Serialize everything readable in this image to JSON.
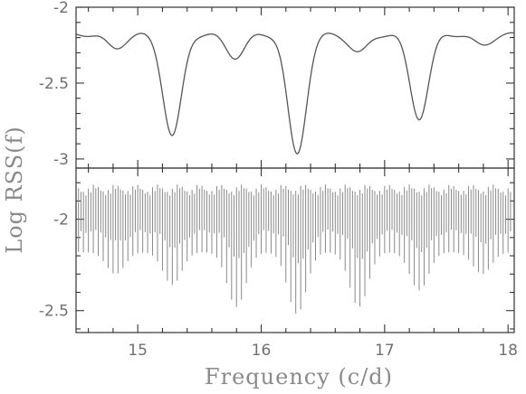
{
  "chart_data": {
    "type": "line",
    "xlabel": "Frequency (c/d)",
    "ylabel": "Log RSS(f)",
    "xlim": [
      14.5,
      18.05
    ],
    "x_ticks": [
      "15",
      "16",
      "17",
      "18"
    ],
    "panels": [
      {
        "name": "top",
        "style": "line",
        "ylim": [
          -3.06,
          -2.0
        ],
        "y_ticks": [
          "-2",
          "-2.5",
          "-3"
        ],
        "baseline": -2.18,
        "dips": [
          {
            "x": 14.82,
            "y": -2.27
          },
          {
            "x": 15.28,
            "y": -2.85
          },
          {
            "x": 15.79,
            "y": -2.33
          },
          {
            "x": 16.29,
            "y": -2.97
          },
          {
            "x": 16.79,
            "y": -2.3
          },
          {
            "x": 17.28,
            "y": -2.73
          },
          {
            "x": 17.79,
            "y": -2.25
          }
        ]
      },
      {
        "name": "bottom",
        "style": "comb",
        "ylim": [
          -2.62,
          -1.72
        ],
        "y_ticks": [
          "-2",
          "-2.5"
        ],
        "comb_spacing": 0.04,
        "comb_top": -1.83,
        "comb_base_depth": -2.18,
        "dips": [
          {
            "x": 14.82,
            "y": -2.3
          },
          {
            "x": 15.28,
            "y": -2.36
          },
          {
            "x": 15.8,
            "y": -2.48
          },
          {
            "x": 16.29,
            "y": -2.52
          },
          {
            "x": 16.79,
            "y": -2.48
          },
          {
            "x": 17.28,
            "y": -2.39
          },
          {
            "x": 17.79,
            "y": -2.3
          }
        ]
      }
    ]
  }
}
